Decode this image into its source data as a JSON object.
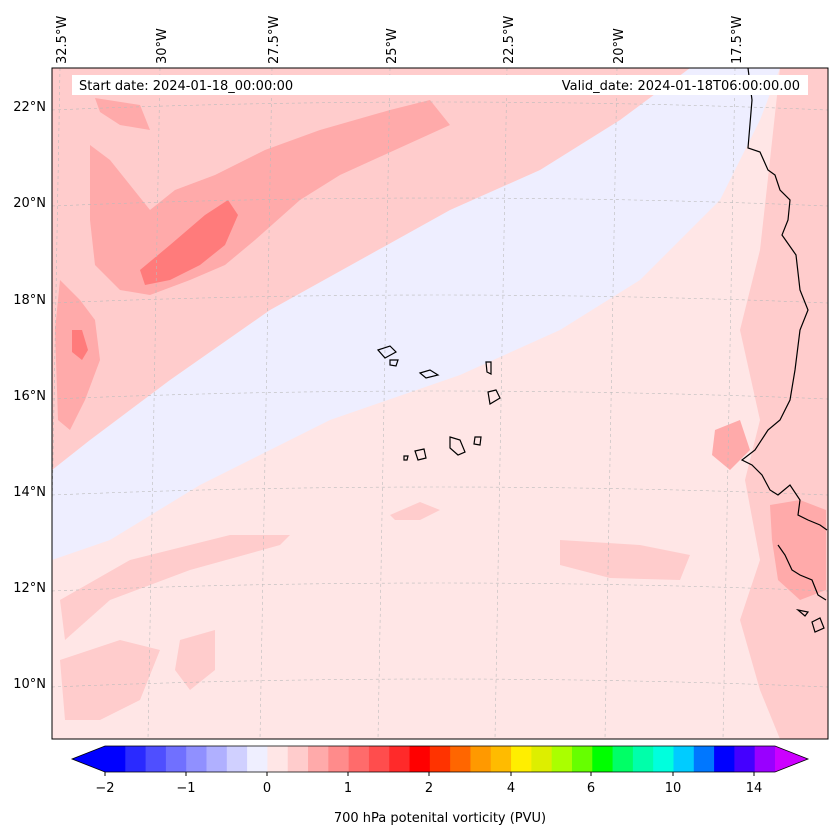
{
  "header": {
    "start_date": "Start date: 2024-01-18_00:00:00",
    "valid_date": "Valid_date: 2024-01-18T06:00:00.00"
  },
  "map": {
    "lon_labels": [
      "32.5°W",
      "30°W",
      "27.5°W",
      "25°W",
      "22.5°W",
      "20°W",
      "17.5°W"
    ],
    "lat_labels": [
      "22°N",
      "20°N",
      "18°N",
      "16°N",
      "14°N",
      "12°N",
      "10°N"
    ],
    "colors": {
      "background": "#ffe6e6",
      "weak_negative": "#eeeeff",
      "light_positive": "#ffcccc",
      "medium_positive": "#ffaaaa",
      "strong_positive": "#ff7b7b",
      "coastline": "#000000",
      "gridline": "#bbbbbb"
    }
  },
  "colorbar": {
    "label": "700 hPa potenital vorticity (PVU)",
    "tick_labels": [
      "−2",
      "−1",
      "0",
      "1",
      "2",
      "4",
      "6",
      "10",
      "14"
    ],
    "colors": [
      "#0000ff",
      "#2a2aff",
      "#4f4fff",
      "#7070ff",
      "#9090ff",
      "#b0b0ff",
      "#d0d0ff",
      "#efefff",
      "#ffe6e6",
      "#ffcccc",
      "#ffaaaa",
      "#ff8b8b",
      "#ff6b6b",
      "#ff4d4d",
      "#ff2a2a",
      "#ff0000",
      "#ff3300",
      "#ff6600",
      "#ff9900",
      "#ffbb00",
      "#ffee00",
      "#ddee00",
      "#aaff00",
      "#66ff00",
      "#00ff00",
      "#00ff66",
      "#00ffaa",
      "#00ffdd",
      "#00ccff",
      "#0077ff",
      "#0000ff",
      "#4400ff",
      "#9900ff"
    ],
    "under_color": "#0000ff",
    "over_color": "#cc00ff"
  }
}
